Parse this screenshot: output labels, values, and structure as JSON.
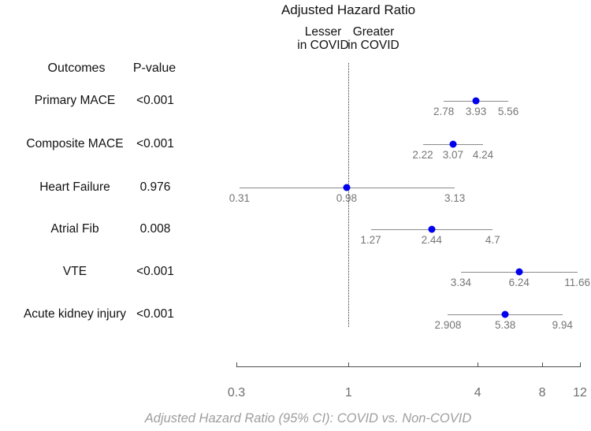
{
  "title": "Adjusted Hazard Ratio",
  "direction_labels": {
    "left_line1": "Lesser",
    "left_line2": "in COVID",
    "right_line1": "Greater",
    "right_line2": "in COVID"
  },
  "columns": {
    "outcomes": "Outcomes",
    "p_value": "P-value"
  },
  "caption": "Adjusted Hazard Ratio (95% CI): COVID vs. Non-COVID",
  "colors": {
    "marker": "#0000ee",
    "ci_line": "#8a8a8a",
    "value_label": "#757575",
    "axis_line": "#4d4d4d",
    "tick_label": "#6e6e6e",
    "reference_line": "#333333",
    "caption": "#9e9e9e",
    "text": "#111111"
  },
  "chart_data": {
    "type": "forest",
    "x_scale": "log",
    "x_range": [
      0.3,
      12
    ],
    "x_ticks": [
      {
        "value": 0.3,
        "label": "0.3"
      },
      {
        "value": 1,
        "label": "1"
      },
      {
        "value": 4,
        "label": "4"
      },
      {
        "value": 8,
        "label": "8"
      },
      {
        "value": 12,
        "label": "12"
      }
    ],
    "reference_line": 1,
    "rows": [
      {
        "outcome": "Primary MACE",
        "p_value": "<0.001",
        "lower": 2.78,
        "estimate": 3.93,
        "upper": 5.56,
        "labels": {
          "lower": "2.78",
          "estimate": "3.93",
          "upper": "5.56"
        }
      },
      {
        "outcome": "Composite MACE",
        "p_value": "<0.001",
        "lower": 2.22,
        "estimate": 3.07,
        "upper": 4.24,
        "labels": {
          "lower": "2.22",
          "estimate": "3.07",
          "upper": "4.24"
        }
      },
      {
        "outcome": "Heart Failure",
        "p_value": "0.976",
        "lower": 0.31,
        "estimate": 0.98,
        "upper": 3.13,
        "labels": {
          "lower": "0.31",
          "estimate": "0.98",
          "upper": "3.13"
        }
      },
      {
        "outcome": "Atrial Fib",
        "p_value": "0.008",
        "lower": 1.27,
        "estimate": 2.44,
        "upper": 4.7,
        "labels": {
          "lower": "1.27",
          "estimate": "2.44",
          "upper": "4.7"
        }
      },
      {
        "outcome": "VTE",
        "p_value": "<0.001",
        "lower": 3.34,
        "estimate": 6.24,
        "upper": 11.66,
        "labels": {
          "lower": "3.34",
          "estimate": "6.24",
          "upper": "11.66"
        }
      },
      {
        "outcome": "Acute kidney injury",
        "p_value": "<0.001",
        "lower": 2.908,
        "estimate": 5.38,
        "upper": 9.94,
        "labels": {
          "lower": "2.908",
          "estimate": "5.38",
          "upper": "9.94"
        }
      }
    ]
  }
}
